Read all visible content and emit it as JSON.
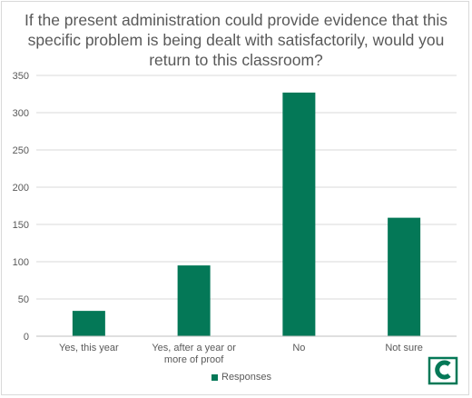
{
  "chart_data": {
    "type": "bar",
    "title": "If the present administration could provide evidence that this specific problem is being dealt with satisfactorily, would you return to this classroom?",
    "categories": [
      "Yes, this year",
      "Yes, after a year or more of proof",
      "No",
      "Not sure"
    ],
    "series": [
      {
        "name": "Responses",
        "values": [
          34,
          95,
          327,
          159
        ]
      }
    ],
    "ylim": [
      0,
      350
    ],
    "yticks": [
      0,
      50,
      100,
      150,
      200,
      250,
      300,
      350
    ],
    "xlabel": "",
    "ylabel": "",
    "grid": true,
    "legend": "bottom",
    "colors": {
      "bar": "#047857",
      "grid": "#d9d9d9",
      "text": "#595959"
    }
  },
  "logo": {
    "icon": "c-logo-icon",
    "color": "#047857"
  }
}
